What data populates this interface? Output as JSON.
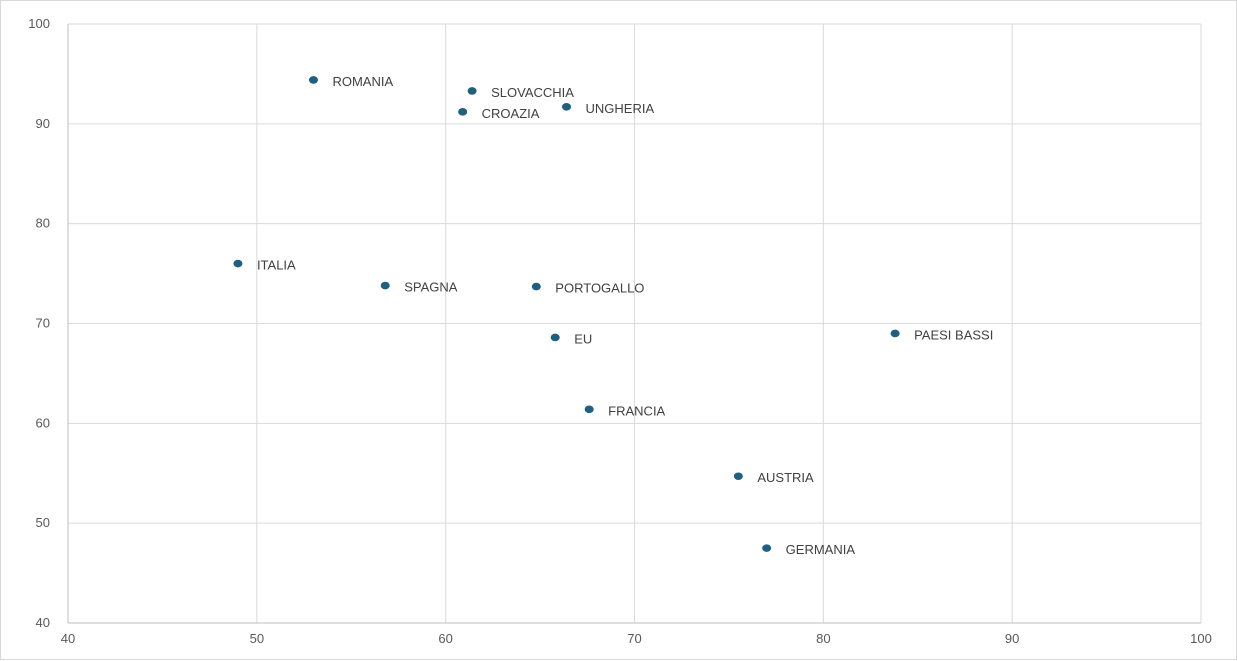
{
  "chart_data": {
    "type": "scatter",
    "title": "",
    "xlabel": "",
    "ylabel": "",
    "xlim": [
      40,
      100
    ],
    "ylim": [
      40,
      100
    ],
    "xticks": [
      40,
      50,
      60,
      70,
      80,
      90,
      100
    ],
    "yticks": [
      40,
      50,
      60,
      70,
      80,
      90,
      100
    ],
    "grid": true,
    "marker_color": "#1f5f7f",
    "points": [
      {
        "label": "ROMANIA",
        "x": 53.0,
        "y": 94.4
      },
      {
        "label": "SLOVACCHIA",
        "x": 61.4,
        "y": 93.3
      },
      {
        "label": "CROAZIA",
        "x": 60.9,
        "y": 91.2
      },
      {
        "label": "UNGHERIA",
        "x": 66.4,
        "y": 91.7
      },
      {
        "label": "ITALIA",
        "x": 49.0,
        "y": 76.0
      },
      {
        "label": "SPAGNA",
        "x": 56.8,
        "y": 73.8
      },
      {
        "label": "PORTOGALLO",
        "x": 64.8,
        "y": 73.7
      },
      {
        "label": "EU",
        "x": 65.8,
        "y": 68.6
      },
      {
        "label": "PAESI BASSI",
        "x": 83.8,
        "y": 69.0
      },
      {
        "label": "FRANCIA",
        "x": 67.6,
        "y": 61.4
      },
      {
        "label": "AUSTRIA",
        "x": 75.5,
        "y": 54.7
      },
      {
        "label": "GERMANIA",
        "x": 77.0,
        "y": 47.5
      }
    ]
  }
}
